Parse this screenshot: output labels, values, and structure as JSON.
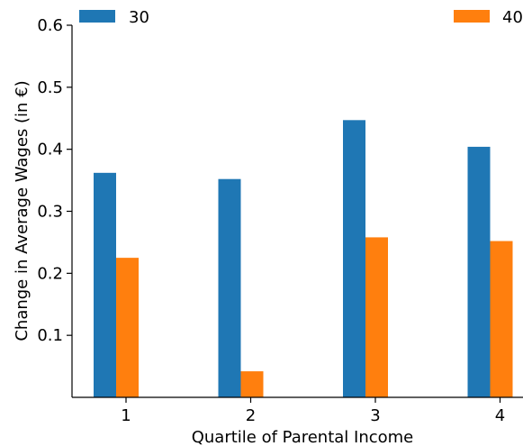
{
  "chart_data": {
    "type": "bar",
    "categories": [
      "1",
      "2",
      "3",
      "4"
    ],
    "series": [
      {
        "name": "30",
        "values": [
          0.362,
          0.352,
          0.447,
          0.404
        ],
        "color": "#1f77b4"
      },
      {
        "name": "40",
        "values": [
          0.225,
          0.042,
          0.258,
          0.252
        ],
        "color": "#ff7f0e"
      }
    ],
    "xlabel": "Quartile of Parental Income",
    "ylabel": "Change in Average Wages (in €)",
    "yticks": [
      "0.1",
      "0.2",
      "0.3",
      "0.4",
      "0.5",
      "0.6"
    ],
    "ytick_values": [
      0.1,
      0.2,
      0.3,
      0.4,
      0.5,
      0.6
    ],
    "ylim": [
      0.0,
      0.6
    ],
    "grid": false,
    "legend_position": "top"
  }
}
